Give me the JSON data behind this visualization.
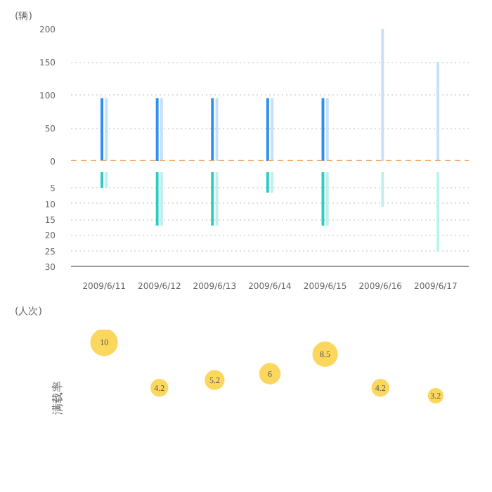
{
  "chart_data": [
    {
      "type": "bar",
      "ylabel": "(辆)",
      "categories": [
        "2009/6/11",
        "2009/6/12",
        "2009/6/13",
        "2009/6/14",
        "2009/6/15",
        "2009/6/16",
        "2009/6/17"
      ],
      "series": [
        {
          "color": "#2e8ff0",
          "values": [
            95,
            95,
            95,
            95,
            95,
            null,
            null
          ]
        },
        {
          "color": "#c6e0fb",
          "values": [
            95,
            95,
            95,
            95,
            95,
            200,
            150
          ]
        }
      ],
      "ylim": [
        0,
        200
      ],
      "yticks": [
        0,
        50,
        100,
        150,
        200
      ],
      "grid": "y",
      "tick_labels": "y",
      "ref_lines": [
        {
          "axis": "y",
          "value": 0,
          "color": "#f4a460",
          "line_style": "dashed"
        }
      ]
    },
    {
      "type": "bar",
      "ylabel": "(人次)",
      "categories": [
        "2009/6/11",
        "2009/6/12",
        "2009/6/13",
        "2009/6/14",
        "2009/6/15",
        "2009/6/16",
        "2009/6/17"
      ],
      "series": [
        {
          "color": "#2ecbc4",
          "values": [
            5,
            17,
            17,
            6.5,
            17,
            null,
            null
          ]
        },
        {
          "color": "#bff0ec",
          "values": [
            5,
            17,
            17,
            6.5,
            17,
            11,
            25.5
          ]
        }
      ],
      "ylim": [
        30,
        0
      ],
      "yticks": [
        5,
        10,
        15,
        20,
        25,
        30
      ],
      "grid": "y"
    },
    {
      "type": "bubble",
      "ylabel": "满载率",
      "categories": [
        "2009/6/11",
        "2009/6/12",
        "2009/6/13",
        "2009/6/14",
        "2009/6/15",
        "2009/6/16",
        "2009/6/17"
      ],
      "values": [
        10,
        4.2,
        5.2,
        6,
        8.5,
        4.2,
        3.2
      ],
      "sizes": [
        1,
        0.42,
        0.52,
        0.6,
        0.85,
        0.42,
        0.32
      ],
      "color": "#fbd85d",
      "data_labels": true,
      "tick_labels": false
    }
  ]
}
